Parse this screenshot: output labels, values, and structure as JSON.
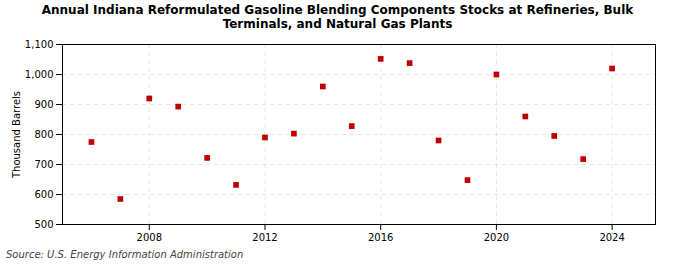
{
  "chart_data": {
    "type": "scatter",
    "title": "Annual Indiana Reformulated Gasoline Blending Components Stocks at Refineries, Bulk\nTerminals, and Natural Gas Plants",
    "ylabel": "Thousand Barrels",
    "source": "Source: U.S. Energy Information Administration",
    "x": [
      2006,
      2007,
      2008,
      2009,
      2010,
      2011,
      2012,
      2013,
      2014,
      2015,
      2016,
      2017,
      2018,
      2019,
      2020,
      2021,
      2022,
      2023,
      2024
    ],
    "values": [
      775,
      585,
      920,
      893,
      722,
      632,
      790,
      803,
      960,
      828,
      1052,
      1038,
      780,
      648,
      1000,
      860,
      795,
      718,
      1020
    ],
    "color": "#c00000",
    "marker": "square",
    "ylim": [
      500,
      1100
    ],
    "yticks": [
      500,
      600,
      700,
      800,
      900,
      {
        "value": 1000,
        "label": "1,000"
      },
      {
        "value": 1100,
        "label": "1,100"
      }
    ],
    "xlim": [
      2005.0,
      2025.5
    ],
    "xticks": [
      2008,
      2012,
      2016,
      2020,
      2024
    ],
    "grid": true
  }
}
